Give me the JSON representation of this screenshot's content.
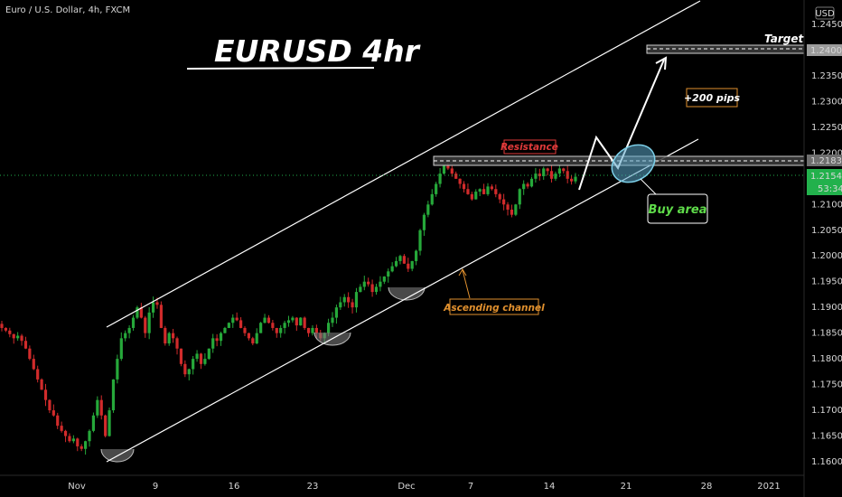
{
  "header": {
    "symbol": "Euro / U.S. Dollar, 4h, FXCM",
    "title": "EURUSD 4hr"
  },
  "annotations": {
    "target": "Target",
    "resistance": "Resistance",
    "pips": "+200 pips",
    "buy_area": "Buy area",
    "channel": "Ascending channel"
  },
  "price_axis": {
    "currency": "USD",
    "ticks": [
      "1.24500",
      "1.24000",
      "1.23500",
      "1.23000",
      "1.22500",
      "1.22000",
      "1.21500",
      "1.21000",
      "1.20500",
      "1.20000",
      "1.19500",
      "1.19000",
      "1.18500",
      "1.18000",
      "1.17500",
      "1.17000",
      "1.16500",
      "1.16000"
    ],
    "target_price": "1.24000",
    "resistance_price": "1.21836",
    "current_price": "1.21542",
    "countdown": "53:34"
  },
  "time_axis": {
    "ticks": [
      "Nov",
      "9",
      "16",
      "23",
      "Dec",
      "7",
      "14",
      "21",
      "28",
      "2021"
    ]
  },
  "colors": {
    "background": "#000000",
    "up": "#26a83a",
    "down": "#d12b2b",
    "current_price": "#22b14c",
    "resistance_text": "#e03a3a",
    "channel_text": "#e0902e",
    "buy_text": "#5fdc4a",
    "buy_area_fill": "#5aa6c8"
  },
  "chart_data": {
    "type": "candlestick",
    "symbol": "EURUSD",
    "timeframe": "4h",
    "x": [
      "2020-11-01",
      "2020-11-09",
      "2020-11-16",
      "2020-11-23",
      "2020-12-01",
      "2020-12-07",
      "2020-12-14",
      "2020-12-21",
      "2020-12-28",
      "2021-01-01"
    ],
    "ylim": [
      1.1575,
      1.246
    ],
    "close_path": [
      [
        1.186,
        1.1855,
        1.1848,
        1.184,
        1.1845,
        1.1835,
        1.182,
        1.18,
        1.178,
        1.176,
        1.174,
        1.172,
        1.17,
        1.169,
        1.167,
        1.166,
        1.165,
        1.164,
        1.1645,
        1.163,
        1.1625,
        1.164,
        1.166,
        1.169,
        1.172,
        1.169,
        1.165,
        1.17,
        1.176,
        1.18,
        1.184,
        1.185,
        1.186,
        1.188,
        1.19,
        1.188,
        1.185,
        1.189,
        1.191,
        1.1905,
        1.186,
        1.183,
        1.185,
        1.184,
        1.182,
        1.179,
        1.177,
        1.178,
        1.18,
        1.181,
        1.179,
        1.18,
        1.182,
        1.184,
        1.1835,
        1.185,
        1.186,
        1.187,
        1.188,
        1.1875,
        1.186,
        1.185,
        1.184,
        1.183,
        1.185,
        1.187,
        1.188,
        1.187,
        1.186,
        1.185,
        1.186,
        1.187,
        1.1875,
        1.188,
        1.1865,
        1.188,
        1.186,
        1.185,
        1.186,
        1.185,
        1.184,
        1.185,
        1.187,
        1.188,
        1.19,
        1.191,
        1.192,
        1.191,
        1.19,
        1.193,
        1.194,
        1.195,
        1.1945,
        1.193,
        1.194,
        1.195,
        1.196,
        1.197,
        1.198,
        1.199,
        1.2,
        1.1985,
        1.1975,
        1.199,
        1.201,
        1.205,
        1.208,
        1.21,
        1.212,
        1.214,
        1.216,
        1.2175,
        1.217,
        1.216,
        1.215,
        1.214,
        1.213,
        1.212,
        1.211,
        1.2125,
        1.213,
        1.212,
        1.2135,
        1.213,
        1.212,
        1.211,
        1.21,
        1.209,
        1.208,
        1.21,
        1.213,
        1.214,
        1.2135,
        1.215,
        1.216,
        1.2155,
        1.217,
        1.2165,
        1.215,
        1.216,
        1.217,
        1.2165,
        1.215,
        1.2145,
        1.2154
      ]
    ],
    "channel": {
      "lower": [
        [
          "2020-11-04",
          1.16
        ],
        [
          "2020-12-24",
          1.22
        ]
      ],
      "upper": [
        [
          "2020-11-04",
          1.187
        ],
        [
          "2020-12-24",
          1.247
        ]
      ]
    },
    "horizontal_levels": [
      {
        "name": "Resistance",
        "value": 1.21836
      },
      {
        "name": "Target",
        "value": 1.24
      }
    ],
    "projection_path": [
      1.2125,
      1.2195,
      1.215,
      1.2385
    ],
    "current_price": 1.21542
  }
}
